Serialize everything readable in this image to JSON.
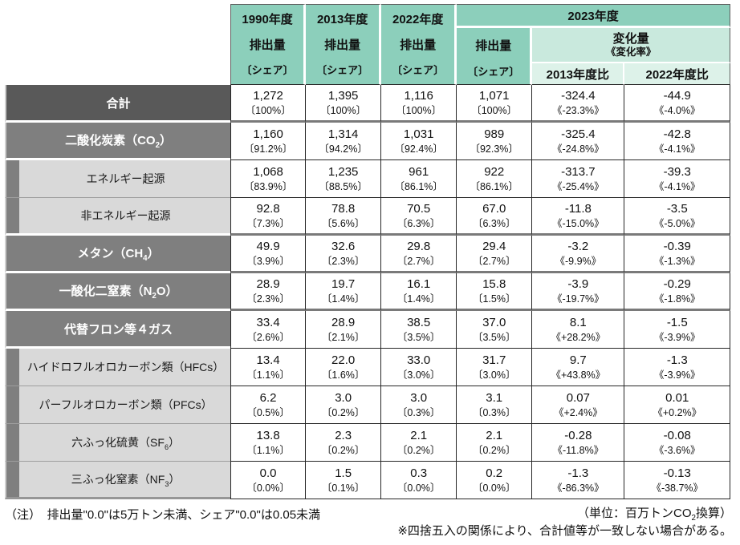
{
  "table": {
    "header": {
      "year_cols": [
        {
          "year": "1990年度",
          "metric": "排出量",
          "share": "〔シェア〕"
        },
        {
          "year": "2013年度",
          "metric": "排出量",
          "share": "〔シェア〕"
        },
        {
          "year": "2022年度",
          "metric": "排出量",
          "share": "〔シェア〕"
        }
      ],
      "y2023": {
        "year": "2023年度",
        "emission": {
          "metric": "排出量",
          "share": "〔シェア〕"
        },
        "change": {
          "title": "変化量",
          "subtitle": "《変化率》",
          "vs2013": "2013年度比",
          "vs2022": "2022年度比"
        }
      }
    },
    "rows": [
      {
        "label_pre": "合計",
        "label_sub": "",
        "label_post": "",
        "level": "total",
        "sep": "thick",
        "label_sep": "gap",
        "cells": [
          {
            "v": "1,272",
            "s": "〔100%〕"
          },
          {
            "v": "1,395",
            "s": "〔100%〕"
          },
          {
            "v": "1,116",
            "s": "〔100%〕"
          },
          {
            "v": "1,071",
            "s": "〔100%〕"
          },
          {
            "v": "-324.4",
            "s": "《-23.3%》"
          },
          {
            "v": "-44.9",
            "s": "《-4.0%》"
          }
        ]
      },
      {
        "label_pre": "二酸化炭素（CO",
        "label_sub": "2",
        "label_post": "）",
        "level": "group",
        "sep": "thin",
        "label_sep": "gap",
        "cells": [
          {
            "v": "1,160",
            "s": "〔91.2%〕"
          },
          {
            "v": "1,314",
            "s": "〔94.2%〕"
          },
          {
            "v": "1,031",
            "s": "〔92.4%〕"
          },
          {
            "v": "989",
            "s": "〔92.3%〕"
          },
          {
            "v": "-325.4",
            "s": "《-24.8%》"
          },
          {
            "v": "-42.8",
            "s": "《-4.1%》"
          }
        ]
      },
      {
        "label_pre": "エネルギー起源",
        "label_sub": "",
        "label_post": "",
        "level": "sub",
        "sep": "thin",
        "label_sep": "line",
        "cells": [
          {
            "v": "1,068",
            "s": "〔83.9%〕"
          },
          {
            "v": "1,235",
            "s": "〔88.5%〕"
          },
          {
            "v": "961",
            "s": "〔86.1%〕"
          },
          {
            "v": "922",
            "s": "〔86.1%〕"
          },
          {
            "v": "-313.7",
            "s": "《-25.4%》"
          },
          {
            "v": "-39.3",
            "s": "《-4.1%》"
          }
        ]
      },
      {
        "label_pre": "非エネルギー起源",
        "label_sub": "",
        "label_post": "",
        "level": "sub",
        "sep": "thick",
        "label_sep": "gap",
        "cells": [
          {
            "v": "92.8",
            "s": "〔7.3%〕"
          },
          {
            "v": "78.8",
            "s": "〔5.6%〕"
          },
          {
            "v": "70.5",
            "s": "〔6.3%〕"
          },
          {
            "v": "67.0",
            "s": "〔6.3%〕"
          },
          {
            "v": "-11.8",
            "s": "《-15.0%》"
          },
          {
            "v": "-3.5",
            "s": "《-5.0%》"
          }
        ]
      },
      {
        "label_pre": "メタン（CH",
        "label_sub": "4",
        "label_post": "）",
        "level": "group",
        "sep": "thick",
        "label_sep": "gap",
        "cells": [
          {
            "v": "49.9",
            "s": "〔3.9%〕"
          },
          {
            "v": "32.6",
            "s": "〔2.3%〕"
          },
          {
            "v": "29.8",
            "s": "〔2.7%〕"
          },
          {
            "v": "29.4",
            "s": "〔2.7%〕"
          },
          {
            "v": "-3.2",
            "s": "《-9.9%》"
          },
          {
            "v": "-0.39",
            "s": "《-1.3%》"
          }
        ]
      },
      {
        "label_pre": "一酸化二窒素（N",
        "label_sub": "2",
        "label_post": "O）",
        "level": "group",
        "sep": "thick",
        "label_sep": "gap",
        "cells": [
          {
            "v": "28.9",
            "s": "〔2.3%〕"
          },
          {
            "v": "19.7",
            "s": "〔1.4%〕"
          },
          {
            "v": "16.1",
            "s": "〔1.4%〕"
          },
          {
            "v": "15.8",
            "s": "〔1.5%〕"
          },
          {
            "v": "-3.9",
            "s": "《-19.7%》"
          },
          {
            "v": "-0.29",
            "s": "《-1.8%》"
          }
        ]
      },
      {
        "label_pre": "代替フロン等４ガス",
        "label_sub": "",
        "label_post": "",
        "level": "group",
        "sep": "thin",
        "label_sep": "gap",
        "cells": [
          {
            "v": "33.4",
            "s": "〔2.6%〕"
          },
          {
            "v": "28.9",
            "s": "〔2.1%〕"
          },
          {
            "v": "38.5",
            "s": "〔3.5%〕"
          },
          {
            "v": "37.0",
            "s": "〔3.5%〕"
          },
          {
            "v": "8.1",
            "s": "《+28.2%》"
          },
          {
            "v": "-1.5",
            "s": "《-3.9%》"
          }
        ]
      },
      {
        "label_pre": "ハイドロフルオロカーボン類（HFCs）",
        "label_sub": "",
        "label_post": "",
        "level": "sub",
        "sep": "thin",
        "label_sep": "line",
        "cells": [
          {
            "v": "13.4",
            "s": "〔1.1%〕"
          },
          {
            "v": "22.0",
            "s": "〔1.6%〕"
          },
          {
            "v": "33.0",
            "s": "〔3.0%〕"
          },
          {
            "v": "31.7",
            "s": "〔3.0%〕"
          },
          {
            "v": "9.7",
            "s": "《+43.8%》"
          },
          {
            "v": "-1.3",
            "s": "《-3.9%》"
          }
        ]
      },
      {
        "label_pre": "パーフルオロカーボン類（PFCs）",
        "label_sub": "",
        "label_post": "",
        "level": "sub",
        "sep": "thin",
        "label_sep": "line",
        "cells": [
          {
            "v": "6.2",
            "s": "〔0.5%〕"
          },
          {
            "v": "3.0",
            "s": "〔0.2%〕"
          },
          {
            "v": "3.0",
            "s": "〔0.3%〕"
          },
          {
            "v": "3.1",
            "s": "〔0.3%〕"
          },
          {
            "v": "0.07",
            "s": "《+2.4%》"
          },
          {
            "v": "0.01",
            "s": "《+0.2%》"
          }
        ]
      },
      {
        "label_pre": "六ふっ化硫黄（SF",
        "label_sub": "6",
        "label_post": "）",
        "level": "sub",
        "sep": "thin",
        "label_sep": "line",
        "cells": [
          {
            "v": "13.8",
            "s": "〔1.1%〕"
          },
          {
            "v": "2.3",
            "s": "〔0.2%〕"
          },
          {
            "v": "2.1",
            "s": "〔0.2%〕"
          },
          {
            "v": "2.1",
            "s": "〔0.2%〕"
          },
          {
            "v": "-0.28",
            "s": "《-11.8%》"
          },
          {
            "v": "-0.08",
            "s": "《-3.6%》"
          }
        ]
      },
      {
        "label_pre": "三ふっ化窒素（NF",
        "label_sub": "3",
        "label_post": "）",
        "level": "sub",
        "sep": "thin",
        "label_sep": "none",
        "cells": [
          {
            "v": "0.0",
            "s": "〔0.0%〕"
          },
          {
            "v": "1.5",
            "s": "〔0.1%〕"
          },
          {
            "v": "0.3",
            "s": "〔0.0%〕"
          },
          {
            "v": "0.2",
            "s": "〔0.0%〕"
          },
          {
            "v": "-1.3",
            "s": "《-86.3%》"
          },
          {
            "v": "-0.13",
            "s": "《-38.7%》"
          }
        ]
      }
    ]
  },
  "footer": {
    "note": "（注）　排出量\"0.0\"は5万トン未満、シェア\"0.0\"は0.05未満",
    "unit_pre": "（単位：百万トンCO",
    "unit_sub": "2",
    "unit_post": "換算）",
    "rounding": "※四捨五入の関係により、合計値等が一致しない場合がある。"
  },
  "colors": {
    "header_teal": "#8CCFBB",
    "header_teal_mid": "#C9E9DD",
    "header_teal_light": "#DDF2E9",
    "row_total_gray": "#595959",
    "row_group_gray": "#7F7F7F",
    "row_sub_gray": "#D9D9D9"
  }
}
